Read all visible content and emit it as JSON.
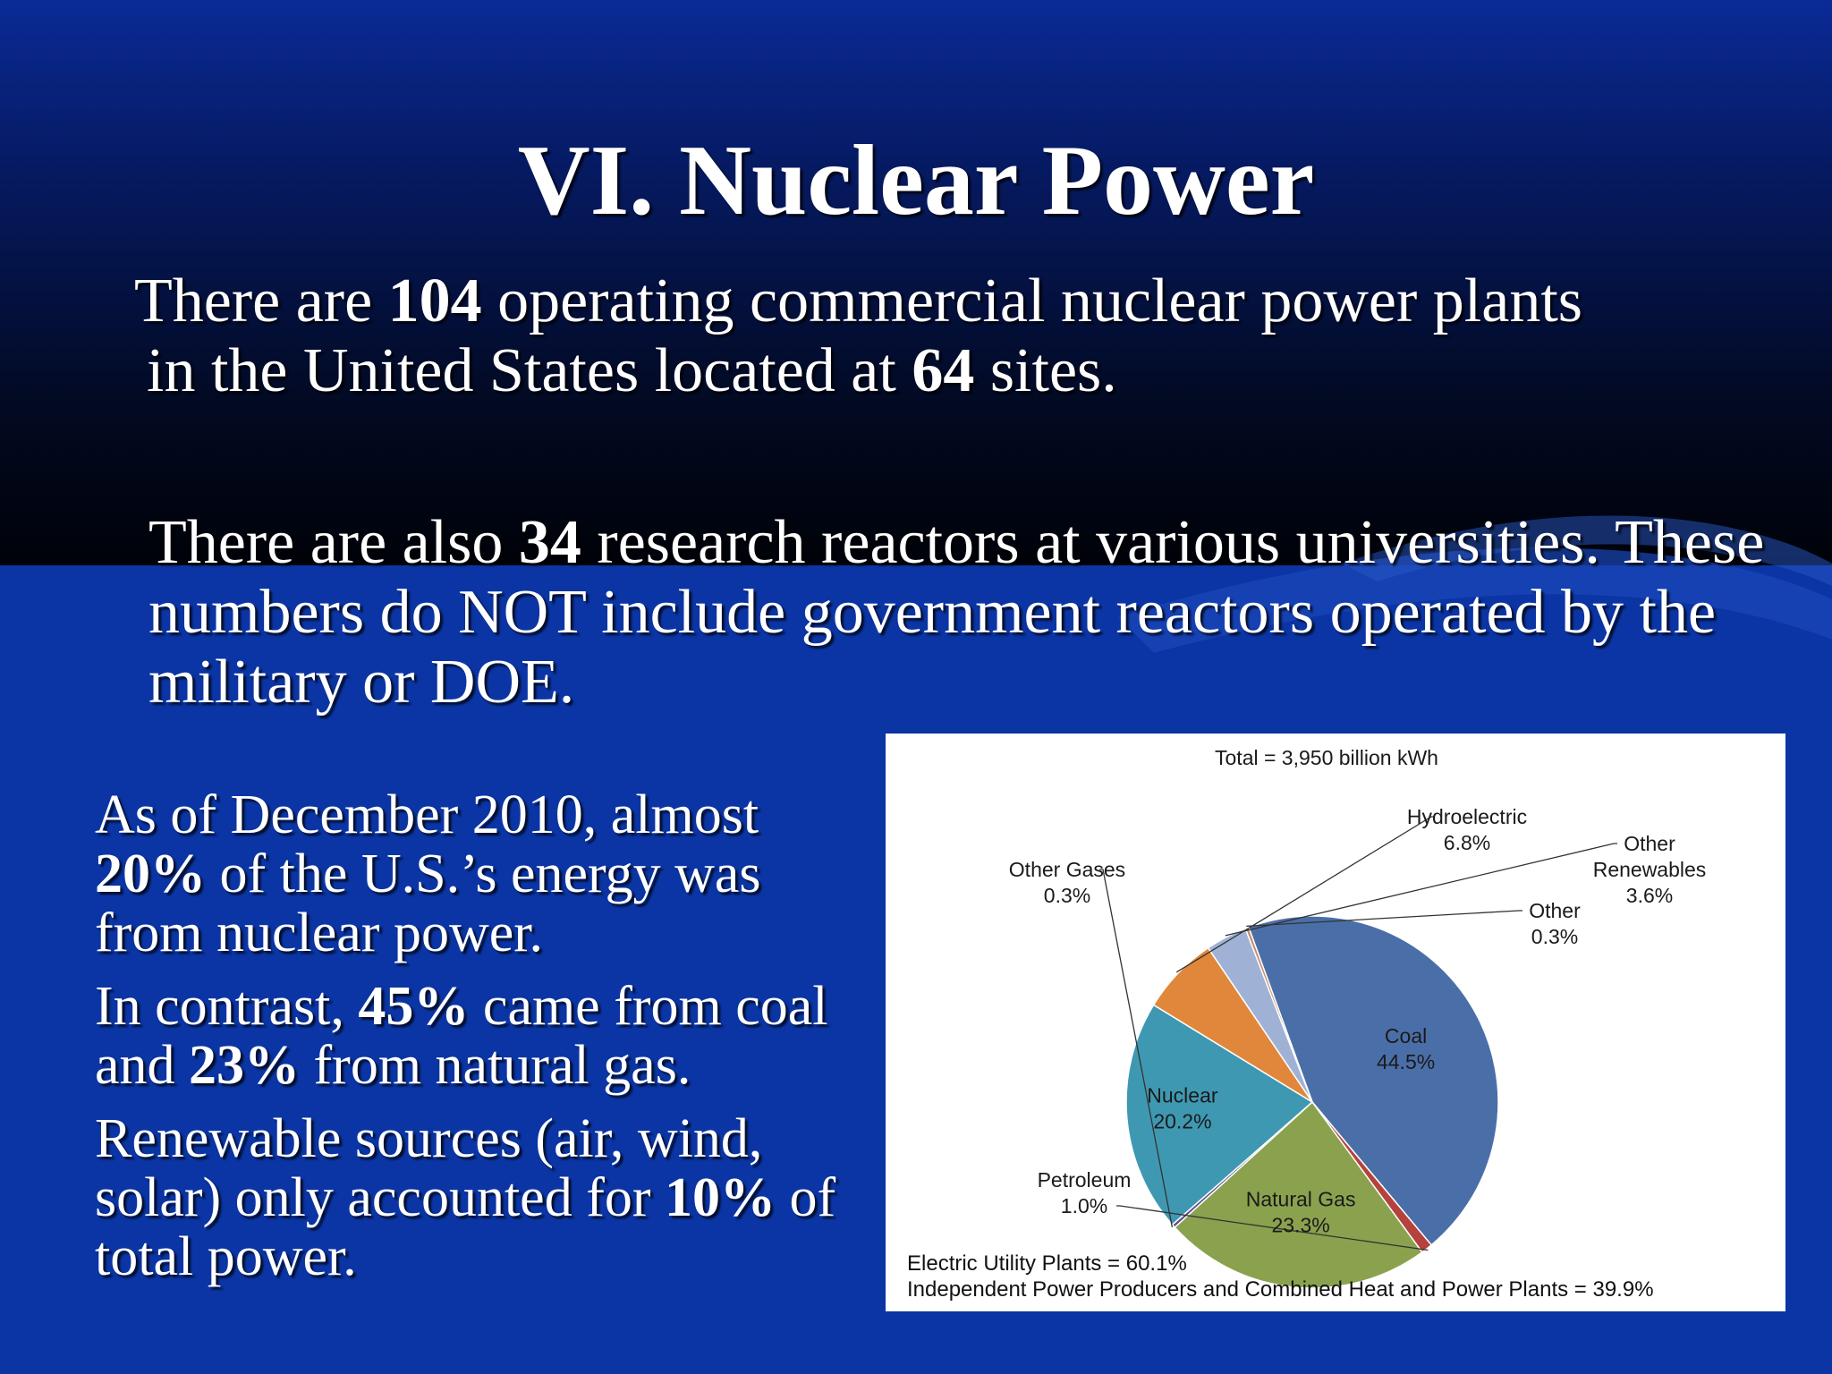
{
  "slide": {
    "title": "VI. Nuclear Power",
    "para1": {
      "t1": "There are ",
      "b1": "104",
      "t2": " operating commercial nuclear power plants",
      "t3": "in the United States located at ",
      "b2": "64",
      "t4": " sites."
    },
    "para2": {
      "t1": "There are also ",
      "b1": "34",
      "t2": " research reactors at various universities. These numbers do NOT include government reactors operated by the military or DOE."
    },
    "left": {
      "p1": {
        "t1": "As of December 2010, almost ",
        "b1": "20%",
        "t2": " of the U.S.’s energy was from nuclear power."
      },
      "p2": {
        "t1": "In contrast, ",
        "b1": "45%",
        "t2": " came from coal and ",
        "b2": "23%",
        "t3": " from natural gas."
      },
      "p3": {
        "t1": "Renewable sources (air, wind, solar) only accounted for ",
        "b1": "10%",
        "t2": " of total power."
      }
    },
    "colors": {
      "background_top": "#020a24",
      "background_bottom": "#0b35a4"
    }
  },
  "chart_data": {
    "type": "pie",
    "title": "Total = 3,950 billion kWh",
    "slices": [
      {
        "label": "Coal",
        "value": 44.5,
        "value_text": "44.5%",
        "color": "#4a6fa8"
      },
      {
        "label": "Petroleum",
        "value": 1.0,
        "value_text": "1.0%",
        "color": "#b5423c"
      },
      {
        "label": "Natural Gas",
        "value": 23.3,
        "value_text": "23.3%",
        "color": "#8aa24e"
      },
      {
        "label": "Other Gases",
        "value": 0.3,
        "value_text": "0.3%",
        "color": "#5e4a8c"
      },
      {
        "label": "Nuclear",
        "value": 20.2,
        "value_text": "20.2%",
        "color": "#3f98b2"
      },
      {
        "label": "Hydroelectric",
        "value": 6.8,
        "value_text": "6.8%",
        "color": "#e0873c"
      },
      {
        "label": "Other Renewables",
        "value": 3.6,
        "value_text": "3.6%",
        "color": "#9fb2d6"
      },
      {
        "label": "Other",
        "value": 0.3,
        "value_text": "0.3%",
        "color": "#c78a6a"
      }
    ],
    "footnotes": [
      "Electric Utility Plants = 60.1%",
      "Independent Power Producers and Combined Heat and Power Plants = 39.9%"
    ]
  }
}
